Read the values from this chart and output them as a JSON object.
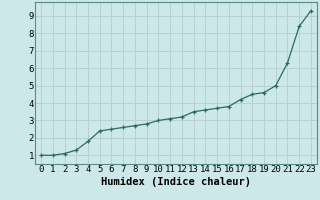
{
  "x": [
    0,
    1,
    2,
    3,
    4,
    5,
    6,
    7,
    8,
    9,
    10,
    11,
    12,
    13,
    14,
    15,
    16,
    17,
    18,
    19,
    20,
    21,
    22,
    23
  ],
  "y": [
    1.0,
    1.0,
    1.1,
    1.3,
    1.8,
    2.4,
    2.5,
    2.6,
    2.7,
    2.8,
    3.0,
    3.1,
    3.2,
    3.5,
    3.6,
    3.7,
    3.8,
    4.2,
    4.5,
    4.6,
    5.0,
    6.3,
    8.4,
    9.3
  ],
  "line_color": "#2d6b5e",
  "bg_color": "#cde8e8",
  "grid_color": "#b8d0d0",
  "spine_color": "#5a8a8a",
  "xlabel": "Humidex (Indice chaleur)",
  "xlim": [
    -0.5,
    23.5
  ],
  "ylim": [
    0.5,
    9.8
  ],
  "yticks": [
    1,
    2,
    3,
    4,
    5,
    6,
    7,
    8,
    9
  ],
  "xticks": [
    0,
    1,
    2,
    3,
    4,
    5,
    6,
    7,
    8,
    9,
    10,
    11,
    12,
    13,
    14,
    15,
    16,
    17,
    18,
    19,
    20,
    21,
    22,
    23
  ],
  "marker": "+",
  "markersize": 3.5,
  "markeredgewidth": 0.9,
  "linewidth": 0.9,
  "xlabel_fontsize": 7.5,
  "tick_fontsize": 6.5,
  "font_family": "monospace"
}
